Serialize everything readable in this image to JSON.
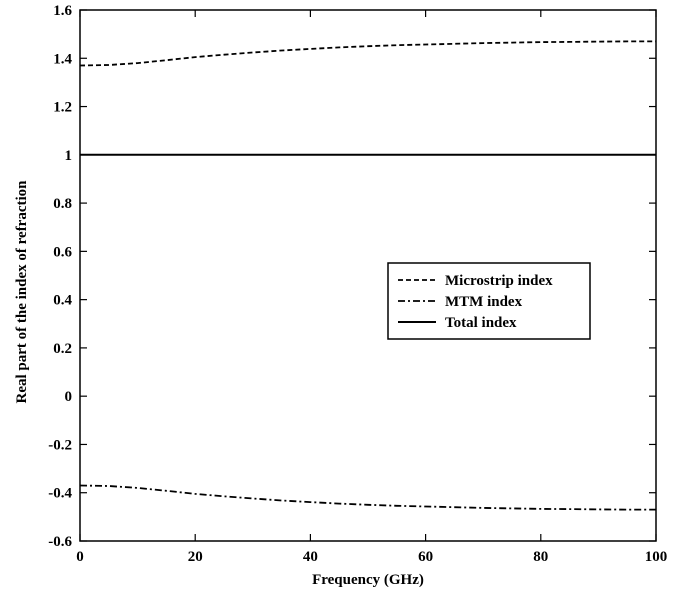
{
  "chart_data": {
    "type": "line",
    "title": "",
    "xlabel": "Frequency (GHz)",
    "ylabel": "Real part of the index of refraction",
    "xlim": [
      0,
      100
    ],
    "ylim": [
      -0.6,
      1.6
    ],
    "xticks": [
      "0",
      "20",
      "40",
      "60",
      "80",
      "100"
    ],
    "yticks": [
      "-0.6",
      "-0.4",
      "-0.2",
      "0",
      "0.2",
      "0.4",
      "0.6",
      "0.8",
      "1",
      "1.2",
      "1.4",
      "1.6"
    ],
    "grid": false,
    "legend_position": "center-right",
    "series": [
      {
        "name": "Microstrip index",
        "style": "dashed",
        "color": "#000000",
        "x": [
          0,
          5,
          10,
          15,
          20,
          25,
          30,
          35,
          40,
          45,
          50,
          55,
          60,
          65,
          70,
          75,
          80,
          85,
          90,
          95,
          100
        ],
        "y": [
          1.37,
          1.372,
          1.38,
          1.392,
          1.405,
          1.415,
          1.424,
          1.432,
          1.439,
          1.445,
          1.45,
          1.454,
          1.457,
          1.46,
          1.463,
          1.465,
          1.467,
          1.468,
          1.469,
          1.47,
          1.47
        ]
      },
      {
        "name": "MTM index",
        "style": "dashdot",
        "color": "#000000",
        "x": [
          0,
          5,
          10,
          15,
          20,
          25,
          30,
          35,
          40,
          45,
          50,
          55,
          60,
          65,
          70,
          75,
          80,
          85,
          90,
          95,
          100
        ],
        "y": [
          -0.37,
          -0.372,
          -0.38,
          -0.392,
          -0.405,
          -0.415,
          -0.424,
          -0.432,
          -0.439,
          -0.445,
          -0.45,
          -0.454,
          -0.457,
          -0.46,
          -0.463,
          -0.465,
          -0.467,
          -0.468,
          -0.469,
          -0.47,
          -0.47
        ]
      },
      {
        "name": "Total index",
        "style": "solid",
        "color": "#000000",
        "x": [
          0,
          100
        ],
        "y": [
          1.0,
          1.0
        ]
      }
    ]
  }
}
